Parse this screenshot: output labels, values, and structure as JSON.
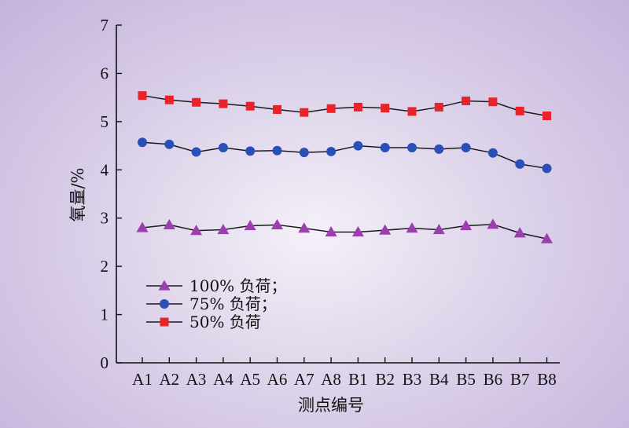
{
  "chart_data": {
    "type": "line",
    "title": "",
    "xlabel": "测点编号",
    "ylabel": "氧量/%",
    "ylim": [
      0,
      7
    ],
    "yticks": [
      0,
      1,
      2,
      3,
      4,
      5,
      6,
      7
    ],
    "grid": false,
    "legend_position": "bottom-left",
    "categories": [
      "A1",
      "A2",
      "A3",
      "A4",
      "A5",
      "A6",
      "A7",
      "A8",
      "B1",
      "B2",
      "B3",
      "B4",
      "B5",
      "B6",
      "B7",
      "B8"
    ],
    "series": [
      {
        "name": "100% 负荷；",
        "marker": "triangle",
        "color": "#9b3fae",
        "values": [
          2.8,
          2.86,
          2.74,
          2.76,
          2.84,
          2.86,
          2.79,
          2.71,
          2.71,
          2.75,
          2.79,
          2.76,
          2.84,
          2.87,
          2.69,
          2.57
        ]
      },
      {
        "name": "75% 负荷；",
        "marker": "circle",
        "color": "#2a4fb8",
        "values": [
          4.57,
          4.53,
          4.37,
          4.46,
          4.39,
          4.4,
          4.36,
          4.38,
          4.5,
          4.46,
          4.46,
          4.43,
          4.46,
          4.35,
          4.12,
          4.03
        ]
      },
      {
        "name": "50% 负荷",
        "marker": "square",
        "color": "#e8232a",
        "values": [
          5.54,
          5.45,
          5.4,
          5.37,
          5.32,
          5.25,
          5.19,
          5.27,
          5.3,
          5.28,
          5.21,
          5.3,
          5.43,
          5.41,
          5.22,
          5.12
        ]
      }
    ]
  }
}
